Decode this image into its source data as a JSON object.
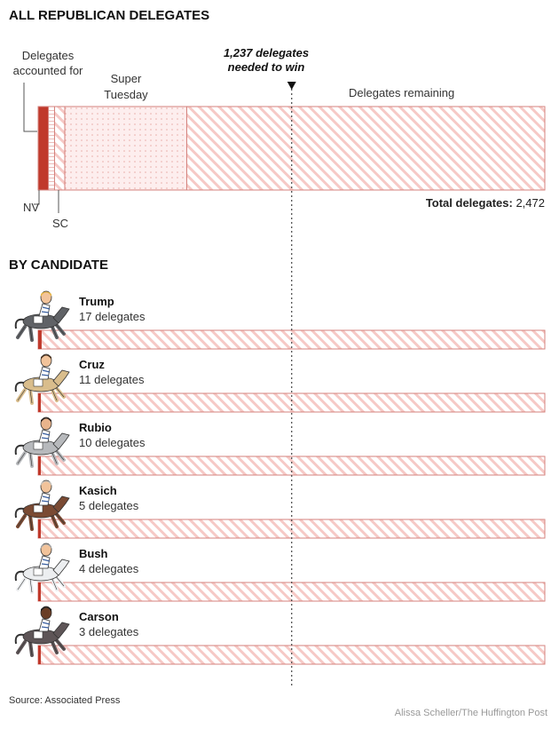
{
  "title": "ALL REPUBLICAN DELEGATES",
  "section_title": "BY CANDIDATE",
  "threshold_label_line1": "1,237 delegates",
  "threshold_label_line2": "needed to win",
  "threshold_value": 1237,
  "total_label": "Total delegates:",
  "total_value_text": "2,472",
  "annotations": {
    "accounted_line1": "Delegates",
    "accounted_line2": "accounted for",
    "super_line1": "Super",
    "super_line2": "Tuesday",
    "remaining": "Delegates remaining",
    "nv": "NV",
    "sc": "SC"
  },
  "colors": {
    "accounted": "#c0392b",
    "stripe": "#f6c9c6",
    "border": "#d4827c",
    "dots": "#e7a9a4",
    "fill": "#fdeeee"
  },
  "chart_data": [
    {
      "type": "bar",
      "title": "ALL REPUBLICAN DELEGATES",
      "total": 2472,
      "threshold": 1237,
      "segments": [
        {
          "name": "Delegates accounted for",
          "value": 50
        },
        {
          "name": "NV",
          "value": 30
        },
        {
          "name": "SC",
          "value": 50
        },
        {
          "name": "Super Tuesday",
          "value": 595
        },
        {
          "name": "Delegates remaining",
          "value": 1747
        }
      ]
    },
    {
      "type": "bar",
      "title": "BY CANDIDATE",
      "categories": [
        "Trump",
        "Cruz",
        "Rubio",
        "Kasich",
        "Bush",
        "Carson"
      ],
      "values": [
        17,
        11,
        10,
        5,
        4,
        3
      ],
      "value_labels": [
        "17 delegates",
        "11 delegates",
        "10 delegates",
        "5 delegates",
        "4 delegates",
        "3 delegates"
      ],
      "xlim": [
        0,
        2472
      ]
    }
  ],
  "candidates": [
    {
      "name": "Trump",
      "count": "17 delegates",
      "value": 17,
      "jersey": "#ffffff",
      "horse": "#606266",
      "skin": "#f2c39a",
      "hair": "#e8b84a"
    },
    {
      "name": "Cruz",
      "count": "11 delegates",
      "value": 11,
      "jersey": "#ffffff",
      "horse": "#d9bd8c",
      "skin": "#f2c39a",
      "hair": "#4a3424"
    },
    {
      "name": "Rubio",
      "count": "10 delegates",
      "value": 10,
      "jersey": "#ffffff",
      "horse": "#b7b9bc",
      "skin": "#e8b48c",
      "hair": "#2a2220"
    },
    {
      "name": "Kasich",
      "count": "5 delegates",
      "value": 5,
      "jersey": "#ffffff",
      "horse": "#7a4a33",
      "skin": "#f2c39a",
      "hair": "#c9c3bb"
    },
    {
      "name": "Bush",
      "count": "4 delegates",
      "value": 4,
      "jersey": "#ffffff",
      "horse": "#eceef0",
      "skin": "#f2c39a",
      "hair": "#a8a8a8"
    },
    {
      "name": "Carson",
      "count": "3 delegates",
      "value": 3,
      "jersey": "#ffffff",
      "horse": "#5e5557",
      "skin": "#6a3e26",
      "hair": "#222222"
    }
  ],
  "source": "Source: Associated Press",
  "credit": "Alissa Scheller/The Huffington Post"
}
